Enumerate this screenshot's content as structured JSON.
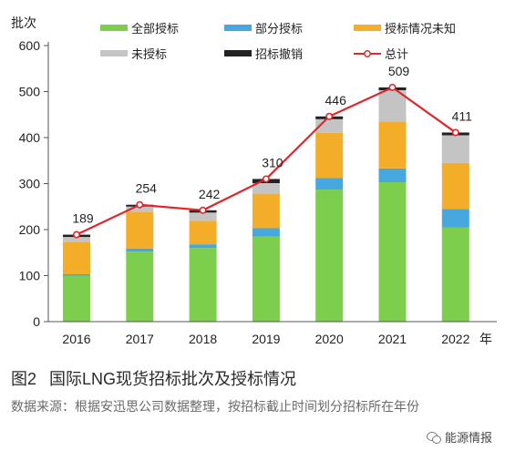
{
  "chart_data": {
    "type": "bar",
    "stacked": true,
    "ylabel": "批次",
    "xlabel": "年",
    "ylim": [
      0,
      600
    ],
    "yticks": [
      0,
      100,
      200,
      300,
      400,
      500,
      600
    ],
    "categories": [
      "2016",
      "2017",
      "2018",
      "2019",
      "2020",
      "2021",
      "2022"
    ],
    "series": [
      {
        "name": "全部授标",
        "color": "#7cce4c",
        "values": [
          100,
          152,
          160,
          185,
          287,
          303,
          205
        ]
      },
      {
        "name": "部分授标",
        "color": "#46a8de",
        "values": [
          3,
          7,
          8,
          18,
          25,
          30,
          40
        ]
      },
      {
        "name": "授标情况未知",
        "color": "#f4ad29",
        "values": [
          70,
          80,
          51,
          75,
          98,
          102,
          100
        ]
      },
      {
        "name": "未授标",
        "color": "#c4c4c4",
        "values": [
          11,
          11,
          18,
          23,
          30,
          68,
          60
        ]
      },
      {
        "name": "招标撤销",
        "color": "#222222",
        "values": [
          5,
          4,
          5,
          9,
          6,
          6,
          6
        ]
      }
    ],
    "line": {
      "name": "总计",
      "color": "#e0252b",
      "values": [
        189,
        254,
        242,
        310,
        446,
        509,
        411
      ]
    },
    "legend_position": "top",
    "grid": false
  },
  "figure": {
    "number": "图2",
    "title": "国际LNG现货招标批次及授标情况",
    "source": "数据来源：根据安迅思公司数据整理，按招标截止时间划分招标所在年份"
  },
  "watermark": {
    "text": "能源情报",
    "icon": "wechat-icon"
  }
}
